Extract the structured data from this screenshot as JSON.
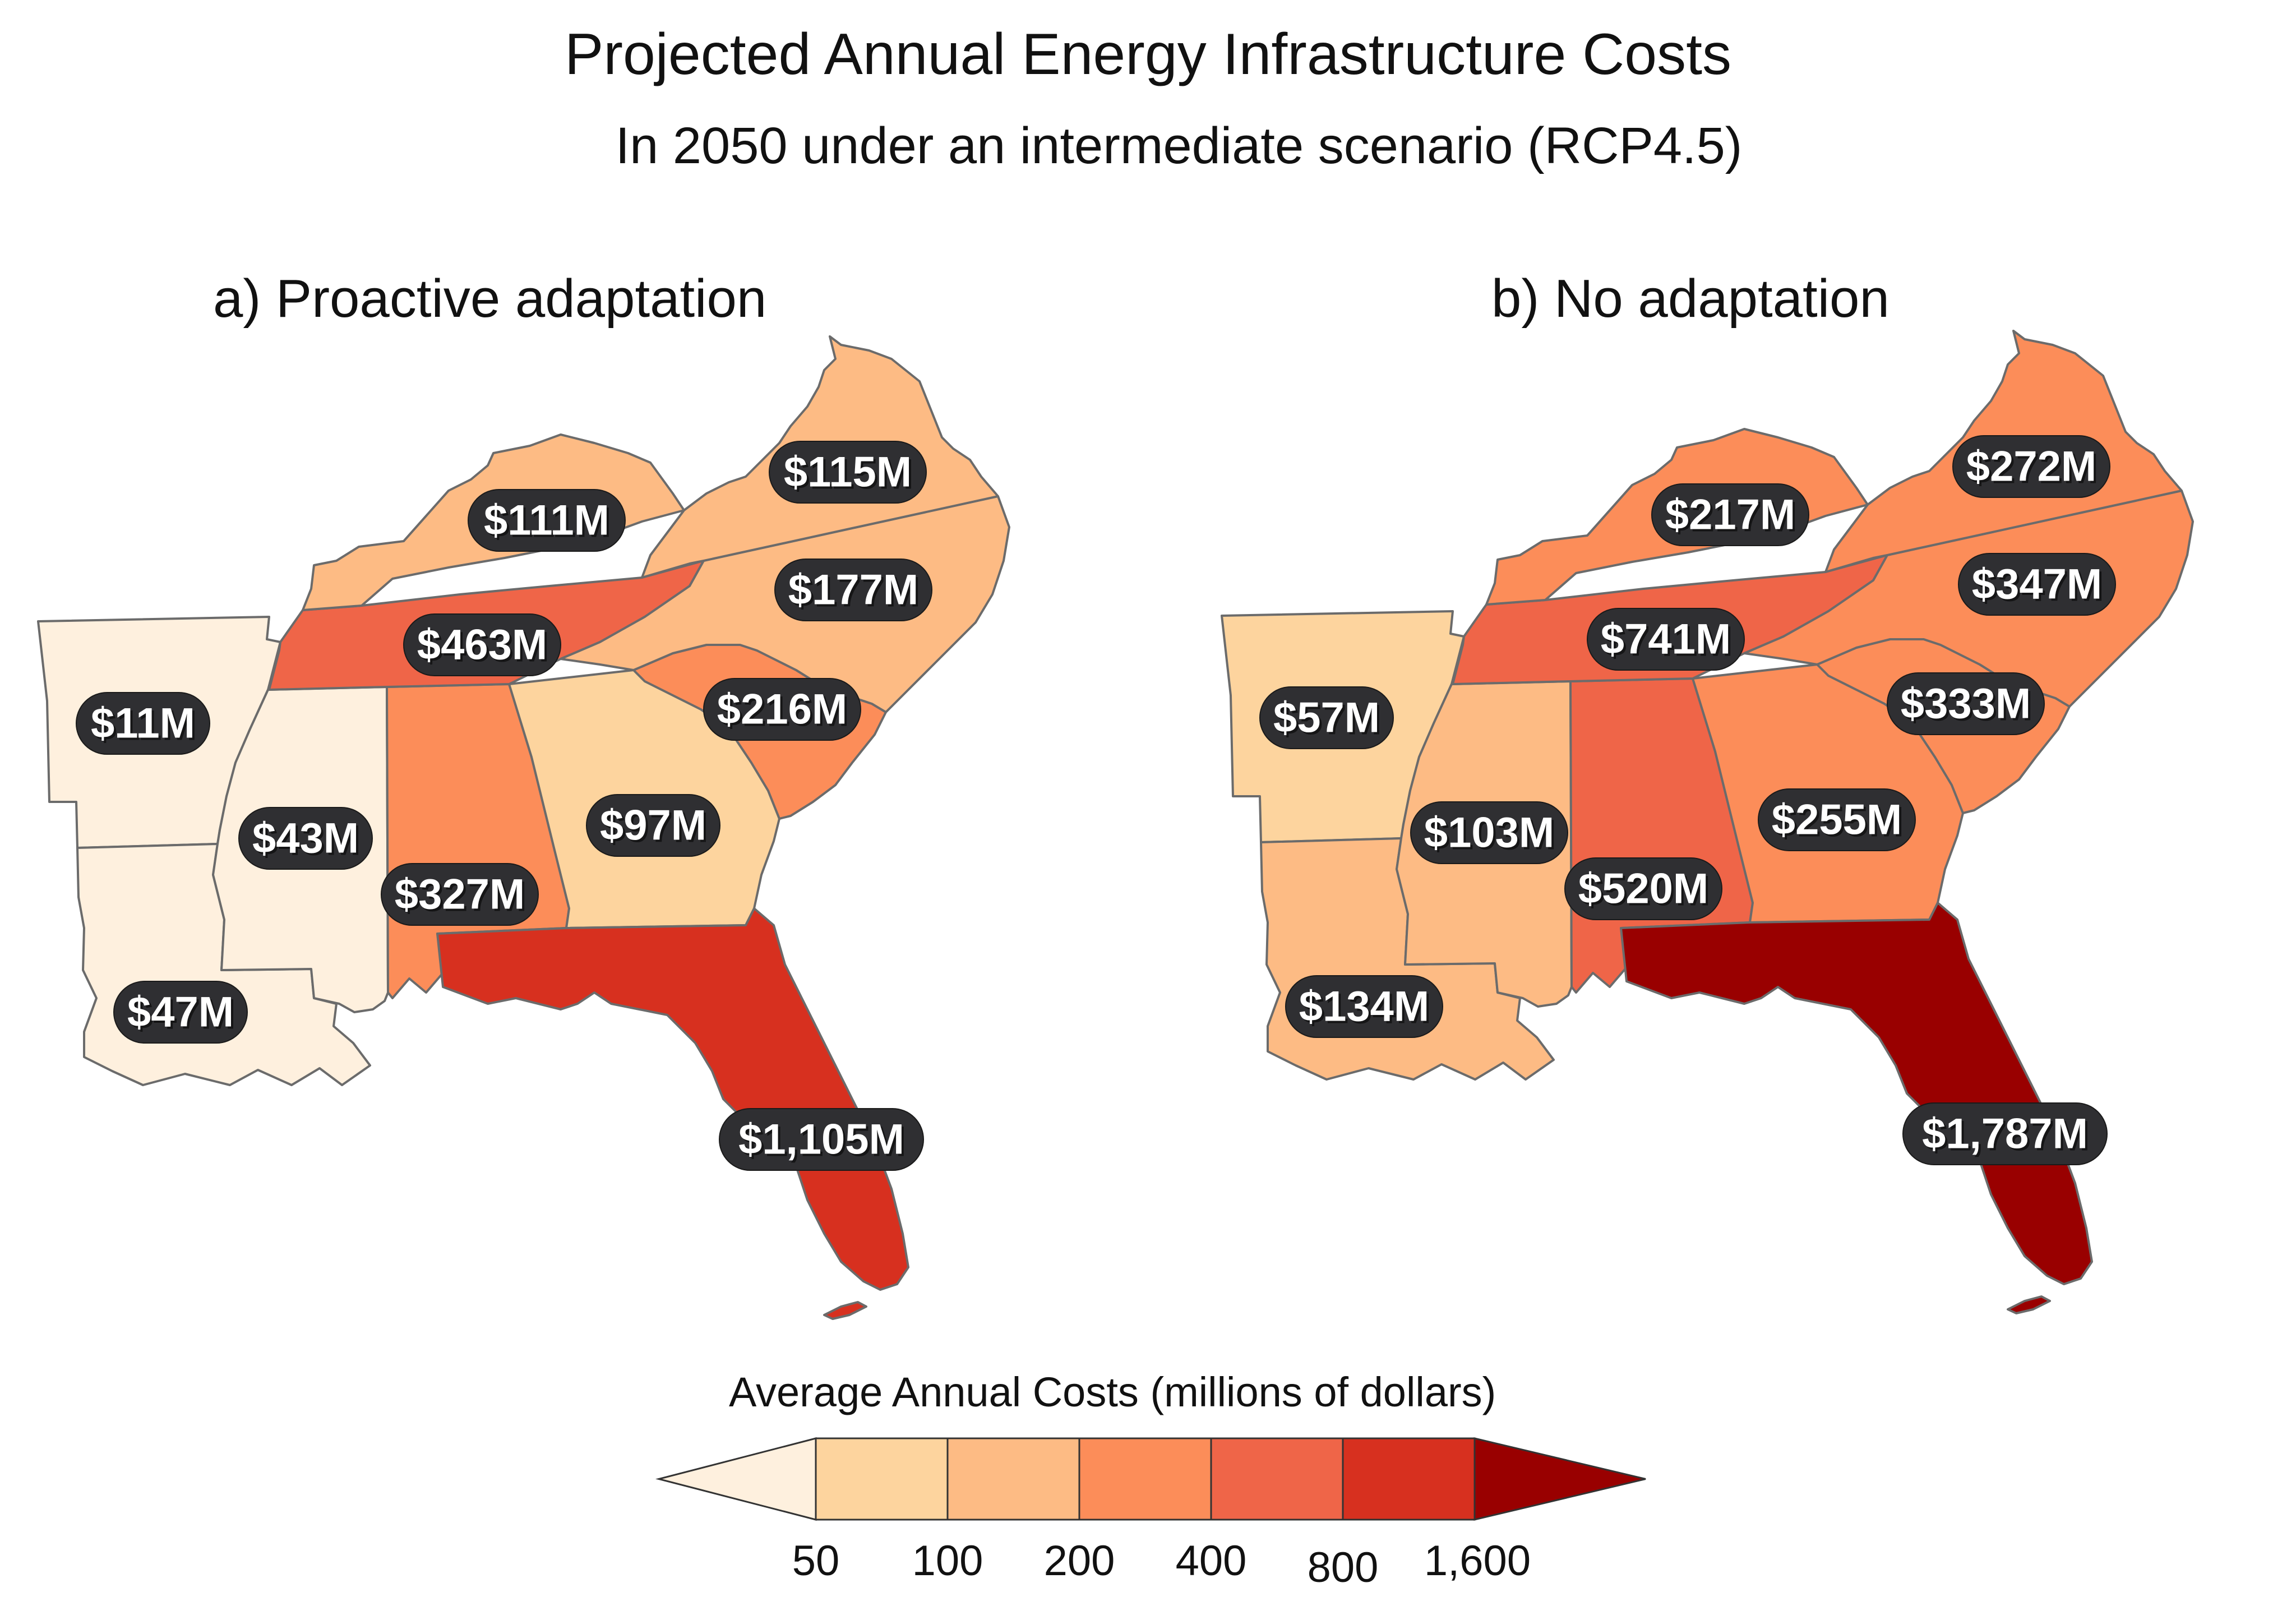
{
  "title": "Projected Annual Energy Infrastructure Costs",
  "subtitle": "In 2050 under an intermediate scenario (RCP4.5)",
  "colors": {
    "bin_lt50": "#fef0de",
    "bin_50_100": "#fdd49e",
    "bin_100_200": "#fdbb84",
    "bin_200_400": "#fc8d59",
    "bin_400_800": "#ef6548",
    "bin_800_1600": "#d7301f",
    "bin_gt1600": "#990000",
    "label_pill": "#2f2f32",
    "state_border": "#6b6b6b"
  },
  "panels": [
    {
      "title": "a) Proactive adaptation",
      "states": [
        {
          "state": "Arkansas",
          "cost_label": "$11M",
          "value": 11
        },
        {
          "state": "Louisiana",
          "cost_label": "$47M",
          "value": 47
        },
        {
          "state": "Mississippi",
          "cost_label": "$43M",
          "value": 43
        },
        {
          "state": "Alabama",
          "cost_label": "$327M",
          "value": 327
        },
        {
          "state": "Tennessee",
          "cost_label": "$463M",
          "value": 463
        },
        {
          "state": "Kentucky",
          "cost_label": "$111M",
          "value": 111
        },
        {
          "state": "Georgia",
          "cost_label": "$97M",
          "value": 97
        },
        {
          "state": "Florida",
          "cost_label": "$1,105M",
          "value": 1105
        },
        {
          "state": "South Carolina",
          "cost_label": "$216M",
          "value": 216
        },
        {
          "state": "North Carolina",
          "cost_label": "$177M",
          "value": 177
        },
        {
          "state": "Virginia",
          "cost_label": "$115M",
          "value": 115
        }
      ]
    },
    {
      "title": "b) No adaptation",
      "states": [
        {
          "state": "Arkansas",
          "cost_label": "$57M",
          "value": 57
        },
        {
          "state": "Louisiana",
          "cost_label": "$134M",
          "value": 134
        },
        {
          "state": "Mississippi",
          "cost_label": "$103M",
          "value": 103
        },
        {
          "state": "Alabama",
          "cost_label": "$520M",
          "value": 520
        },
        {
          "state": "Tennessee",
          "cost_label": "$741M",
          "value": 741
        },
        {
          "state": "Kentucky",
          "cost_label": "$217M",
          "value": 217
        },
        {
          "state": "Georgia",
          "cost_label": "$255M",
          "value": 255
        },
        {
          "state": "Florida",
          "cost_label": "$1,787M",
          "value": 1787
        },
        {
          "state": "South Carolina",
          "cost_label": "$333M",
          "value": 333
        },
        {
          "state": "North Carolina",
          "cost_label": "$347M",
          "value": 347
        },
        {
          "state": "Virginia",
          "cost_label": "$272M",
          "value": 272
        }
      ]
    }
  ],
  "legend": {
    "title": "Average Annual Costs (millions of dollars)",
    "ticks": [
      "50",
      "100",
      "200",
      "400",
      "800",
      "1,600"
    ],
    "thresholds": [
      50,
      100,
      200,
      400,
      800,
      1600
    ]
  }
}
